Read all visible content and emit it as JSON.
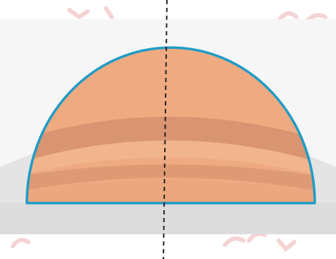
{
  "figure": {
    "shape": "hemisphere",
    "axis_line": "dashed",
    "colors": {
      "background": "#ffffff",
      "ground_band": "#e3e3e3",
      "ground_shadow": "#cfcfcf",
      "dome_fill": "#eeaa80",
      "dome_stripe": "#d48f6c",
      "dome_highlight": "#f3b892",
      "outline": "#1f9cc6",
      "axis": "#222222",
      "watermark": "#f2c6c6"
    }
  }
}
